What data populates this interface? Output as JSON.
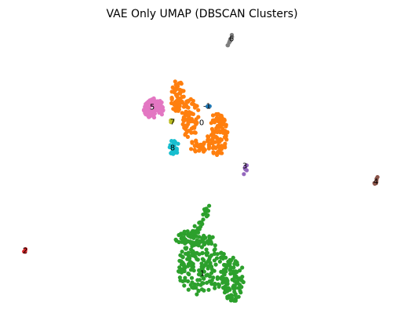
{
  "chart_data": {
    "type": "scatter",
    "title": "VAE Only UMAP (DBSCAN Clusters)",
    "xlabel": "",
    "ylabel": "",
    "axes_visible": false,
    "grid": false,
    "legend": "none",
    "xlim": [
      0,
      480
    ],
    "ylim": [
      0,
      360
    ],
    "clusters": [
      {
        "label": "0",
        "color": "#ff7f0e",
        "label_pos": [
          235,
          120
        ],
        "regions": [
          {
            "shape": "blob",
            "cx": 204,
            "cy": 85,
            "rx": 9,
            "ry": 22,
            "n": 60
          },
          {
            "shape": "blob",
            "cx": 220,
            "cy": 115,
            "rx": 12,
            "ry": 25,
            "n": 70
          },
          {
            "shape": "blob",
            "cx": 255,
            "cy": 135,
            "rx": 13,
            "ry": 27,
            "n": 110
          },
          {
            "shape": "blob",
            "cx": 233,
            "cy": 150,
            "rx": 14,
            "ry": 8,
            "n": 30
          }
        ]
      },
      {
        "label": "1",
        "color": "#2ca02c",
        "label_pos": [
          236,
          312
        ],
        "regions": [
          {
            "shape": "line",
            "x1": 245,
            "y1": 225,
            "x2": 228,
            "y2": 262,
            "w": 3,
            "n": 20
          },
          {
            "shape": "blob",
            "cx": 225,
            "cy": 268,
            "rx": 25,
            "ry": 10,
            "n": 60
          },
          {
            "shape": "blob",
            "cx": 236,
            "cy": 305,
            "rx": 32,
            "ry": 35,
            "n": 170
          },
          {
            "shape": "blob",
            "cx": 275,
            "cy": 320,
            "rx": 14,
            "ry": 28,
            "n": 90
          }
        ]
      },
      {
        "label": "2",
        "color": "#d62728",
        "label_pos": [
          10,
          283
        ],
        "regions": [
          {
            "shape": "blob",
            "cx": 10,
            "cy": 283,
            "rx": 2,
            "ry": 2,
            "n": 4
          }
        ]
      },
      {
        "label": "3",
        "color": "#9467bd",
        "label_pos": [
          290,
          175
        ],
        "regions": [
          {
            "shape": "blob",
            "cx": 291,
            "cy": 178,
            "rx": 3,
            "ry": 4,
            "n": 5
          },
          {
            "shape": "blob",
            "cx": 289,
            "cy": 186,
            "rx": 1,
            "ry": 1,
            "n": 1
          }
        ]
      },
      {
        "label": "4",
        "color": "#8c564b",
        "label_pos": [
          457,
          195
        ],
        "regions": [
          {
            "shape": "line",
            "x1": 460,
            "y1": 189,
            "x2": 455,
            "y2": 199,
            "w": 1,
            "n": 8
          }
        ]
      },
      {
        "label": "5",
        "color": "#e377c2",
        "label_pos": [
          172,
          100
        ],
        "regions": [
          {
            "shape": "blob",
            "cx": 174,
            "cy": 102,
            "rx": 13,
            "ry": 13,
            "n": 110
          }
        ]
      },
      {
        "label": "6",
        "color": "#7f7f7f",
        "label_pos": [
          273,
          13
        ],
        "regions": [
          {
            "shape": "line",
            "x1": 274,
            "y1": 8,
            "x2": 268,
            "y2": 24,
            "w": 1,
            "n": 10
          }
        ]
      },
      {
        "label": "7",
        "color": "#bcbd22",
        "label_pos": [
          198,
          119
        ],
        "regions": [
          {
            "shape": "blob",
            "cx": 197,
            "cy": 119,
            "rx": 2,
            "ry": 2,
            "n": 4
          }
        ]
      },
      {
        "label": "8",
        "color": "#17becf",
        "label_pos": [
          198,
          152
        ],
        "regions": [
          {
            "shape": "blob",
            "cx": 200,
            "cy": 152,
            "rx": 6,
            "ry": 11,
            "n": 25
          }
        ]
      },
      {
        "label": "-1",
        "color": "#1f77b4",
        "label_pos": [
          242,
          99
        ],
        "regions": [
          {
            "shape": "blob",
            "cx": 244,
            "cy": 99,
            "rx": 2,
            "ry": 1,
            "n": 2
          }
        ]
      }
    ]
  }
}
